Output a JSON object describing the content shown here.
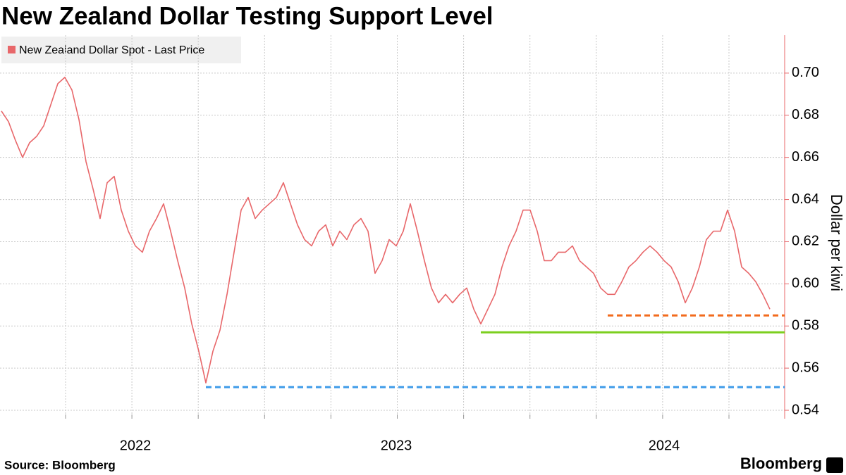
{
  "chart_data": {
    "type": "line",
    "title": "New Zealand Dollar Testing Support Level",
    "y_axis_label": "Dollar per kiwi",
    "source": "Source: Bloomberg",
    "logo": "Bloomberg",
    "categories": [
      null,
      null,
      null,
      null,
      null,
      null,
      null,
      null,
      null,
      null,
      null,
      null,
      null,
      null,
      null,
      null,
      null,
      null,
      null,
      "2022",
      null,
      null,
      null,
      null,
      null,
      null,
      null,
      null,
      null,
      null,
      null,
      null,
      null,
      null,
      null,
      null,
      null,
      null,
      null,
      null,
      null,
      null,
      null,
      null,
      null,
      null,
      null,
      null,
      null,
      null,
      null,
      null,
      null,
      null,
      null,
      null,
      "2023",
      null,
      null,
      null,
      null,
      null,
      null,
      null,
      null,
      null,
      null,
      null,
      null,
      null,
      null,
      null,
      null,
      null,
      null,
      null,
      null,
      null,
      null,
      null,
      null,
      null,
      null,
      null,
      null,
      null,
      null,
      null,
      null,
      null,
      null,
      null,
      null,
      null,
      "2024",
      null,
      null,
      null,
      null,
      null,
      null,
      null,
      null,
      null,
      null,
      null,
      null,
      null,
      null,
      null
    ],
    "series": [
      {
        "name": "New Zealand Dollar Spot - Last Price",
        "color": "#e8676a",
        "values": [
          0.682,
          0.677,
          0.668,
          0.66,
          0.667,
          0.67,
          0.675,
          0.685,
          0.695,
          0.698,
          0.692,
          0.678,
          0.658,
          0.645,
          0.631,
          0.648,
          0.651,
          0.635,
          0.625,
          0.618,
          0.615,
          0.625,
          0.631,
          0.638,
          0.625,
          0.611,
          0.598,
          0.581,
          0.568,
          0.553,
          0.568,
          0.578,
          0.595,
          0.615,
          0.635,
          0.641,
          0.631,
          0.635,
          0.638,
          0.641,
          0.648,
          0.638,
          0.628,
          0.621,
          0.618,
          0.625,
          0.628,
          0.618,
          0.625,
          0.621,
          0.628,
          0.631,
          0.625,
          0.605,
          0.611,
          0.621,
          0.618,
          0.625,
          0.638,
          0.625,
          0.611,
          0.598,
          0.591,
          0.595,
          0.591,
          0.595,
          0.598,
          0.588,
          0.581,
          0.588,
          0.595,
          0.608,
          0.618,
          0.625,
          0.635,
          0.635,
          0.625,
          0.611,
          0.611,
          0.615,
          0.615,
          0.618,
          0.611,
          0.608,
          0.605,
          0.598,
          0.595,
          0.595,
          0.601,
          0.608,
          0.611,
          0.615,
          0.618,
          0.615,
          0.611,
          0.608,
          0.601,
          0.591,
          0.598,
          0.608,
          0.621,
          0.625,
          0.625,
          0.635,
          0.625,
          0.608,
          0.605,
          0.601,
          0.595,
          0.588
        ]
      }
    ],
    "reference_lines": [
      {
        "value": 0.551,
        "start": 29,
        "color": "#3d9be9",
        "style": "dashed"
      },
      {
        "value": 0.577,
        "start": 68,
        "color": "#7ccf1f",
        "style": "solid"
      },
      {
        "value": 0.585,
        "start": 86,
        "color": "#f26b1d",
        "style": "dashed"
      }
    ],
    "ylim": [
      0.536,
      0.718
    ],
    "yticks": [
      0.54,
      0.56,
      0.58,
      {
        "value": 0.6,
        "label": "0.60"
      },
      0.62,
      0.64,
      0.66,
      0.68,
      {
        "value": 0.7,
        "label": "0.70"
      }
    ],
    "grid": true,
    "legend": "top-left"
  }
}
